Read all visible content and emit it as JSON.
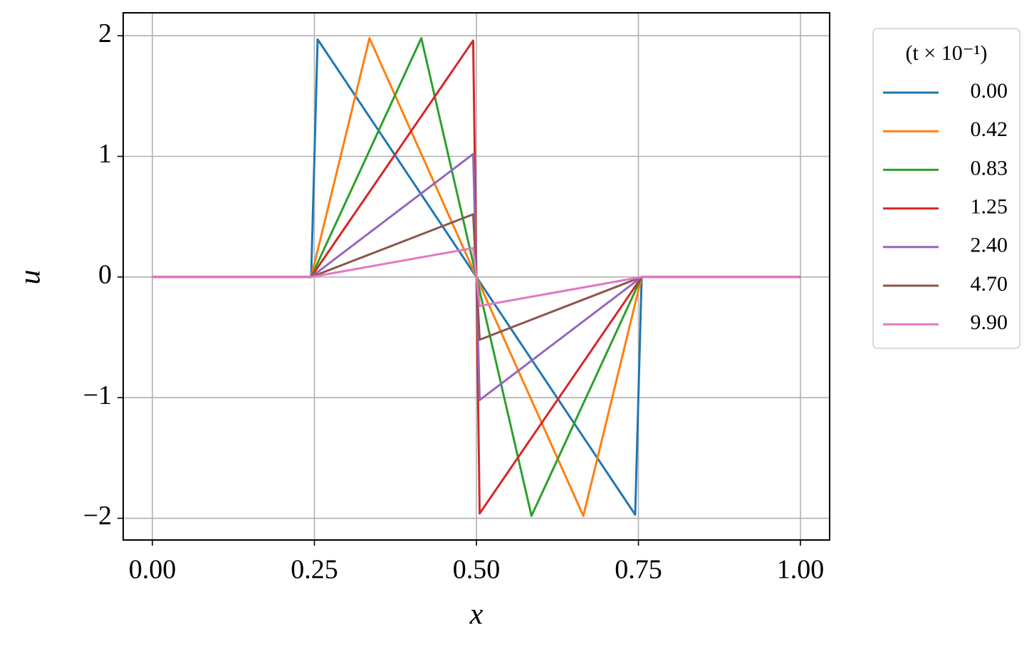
{
  "chart_data": {
    "type": "line",
    "xlabel": "x",
    "ylabel": "u",
    "legend_title": "(t × 10⁻¹)",
    "xlim": [
      -0.045,
      1.045
    ],
    "ylim": [
      -2.18,
      2.19
    ],
    "xticks": [
      {
        "value": 0,
        "label": "0.00"
      },
      {
        "value": 0.25,
        "label": "0.25"
      },
      {
        "value": 0.5,
        "label": "0.50"
      },
      {
        "value": 0.75,
        "label": "0.75"
      },
      {
        "value": 1,
        "label": "1.00"
      }
    ],
    "yticks": [
      {
        "value": -2,
        "label": "−2"
      },
      {
        "value": -1,
        "label": "−1"
      },
      0,
      1,
      2
    ],
    "grid": true,
    "series": [
      {
        "name": "0.00",
        "color": "#1f77b4",
        "x": [
          0,
          0.245,
          0.255,
          0.745,
          0.755,
          1
        ],
        "values": [
          0,
          0,
          1.97,
          -1.97,
          0,
          0
        ]
      },
      {
        "name": "0.42",
        "color": "#ff7f0e",
        "x": [
          0,
          0.245,
          0.335,
          0.665,
          0.755,
          1
        ],
        "values": [
          0,
          0,
          1.98,
          -1.98,
          0,
          0
        ]
      },
      {
        "name": "0.83",
        "color": "#2ca02c",
        "x": [
          0,
          0.245,
          0.415,
          0.585,
          0.755,
          1
        ],
        "values": [
          0,
          0,
          1.98,
          -1.98,
          0,
          0
        ]
      },
      {
        "name": "1.25",
        "color": "#d62728",
        "x": [
          0,
          0.245,
          0.495,
          0.505,
          0.755,
          1
        ],
        "values": [
          0,
          0,
          1.96,
          -1.96,
          0,
          0
        ]
      },
      {
        "name": "2.40",
        "color": "#9467bd",
        "x": [
          0,
          0.245,
          0.495,
          0.505,
          0.755,
          1
        ],
        "values": [
          0,
          0,
          1.02,
          -1.02,
          0,
          0
        ]
      },
      {
        "name": "4.70",
        "color": "#8c564b",
        "x": [
          0,
          0.245,
          0.495,
          0.505,
          0.755,
          1
        ],
        "values": [
          0,
          0,
          0.52,
          -0.52,
          0,
          0
        ]
      },
      {
        "name": "9.90",
        "color": "#e377c2",
        "x": [
          0,
          0.245,
          0.495,
          0.505,
          0.755,
          1
        ],
        "values": [
          0,
          0,
          0.24,
          -0.24,
          0,
          0
        ]
      }
    ]
  }
}
